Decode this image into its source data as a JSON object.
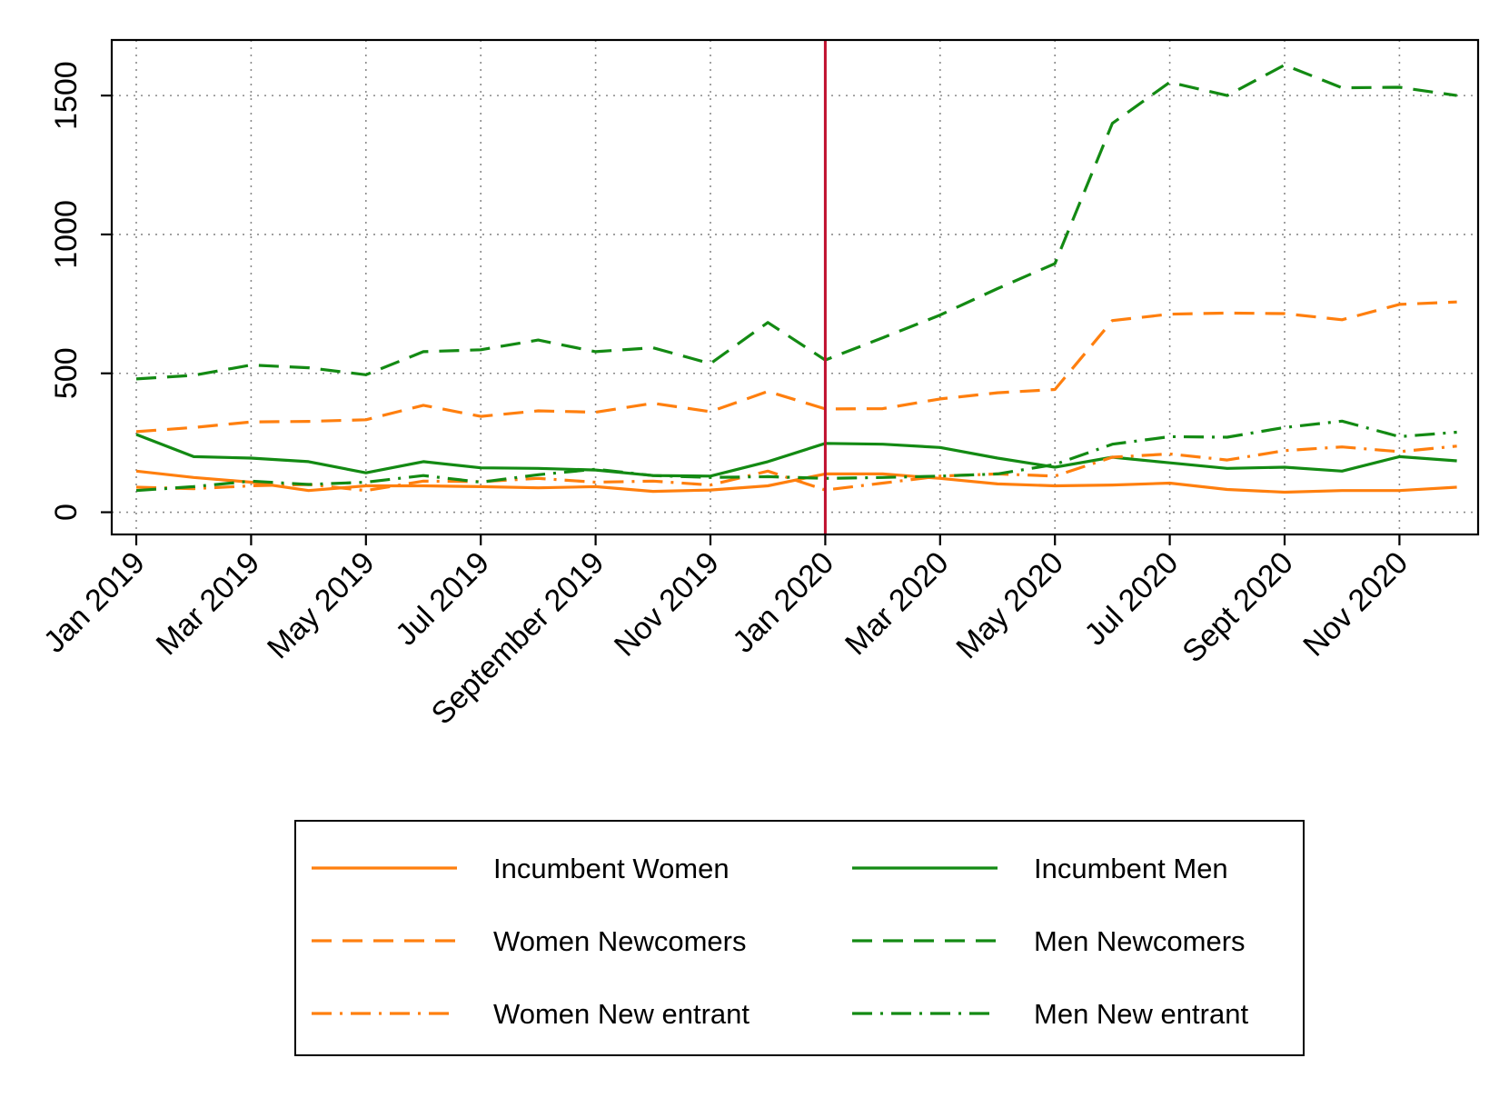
{
  "chart_data": {
    "type": "line",
    "title": "",
    "xlabel": "",
    "ylabel": "",
    "ylim": [
      -80,
      1700
    ],
    "yticks": [
      0,
      500,
      1000,
      1500
    ],
    "x_tick_labels": [
      "Jan 2019",
      "Mar 2019",
      "May 2019",
      "Jul 2019",
      "September 2019",
      "Nov 2019",
      "Jan 2020",
      "Mar 2020",
      "May 2020",
      "Jul 2020",
      "Sept 2020",
      "Nov 2020"
    ],
    "grid": true,
    "grid_style": "dotted",
    "legend_placement": "bottom",
    "reference_line": {
      "x_index": 12,
      "color": "#c0102e"
    },
    "series": [
      {
        "name": "Incumbent Women",
        "color": "#ff7f0e",
        "dash": "solid",
        "values": [
          148,
          125,
          108,
          78,
          95,
          95,
          92,
          88,
          92,
          75,
          80,
          95,
          138,
          138,
          122,
          102,
          95,
          98,
          105,
          82,
          72,
          78,
          78,
          90
        ]
      },
      {
        "name": "Incumbent Men",
        "color": "#138a13",
        "dash": "solid",
        "values": [
          280,
          200,
          195,
          182,
          142,
          182,
          160,
          158,
          152,
          132,
          130,
          182,
          248,
          245,
          233,
          195,
          162,
          198,
          178,
          158,
          162,
          148,
          200,
          185
        ]
      },
      {
        "name": "Women Newcomers",
        "color": "#ff7f0e",
        "dash": "dashed",
        "values": [
          290,
          305,
          325,
          327,
          333,
          385,
          345,
          365,
          360,
          392,
          362,
          435,
          372,
          373,
          408,
          430,
          442,
          690,
          713,
          717,
          715,
          693,
          748,
          757
        ]
      },
      {
        "name": "Men Newcomers",
        "color": "#138a13",
        "dash": "dashed",
        "values": [
          480,
          493,
          530,
          520,
          495,
          578,
          585,
          620,
          578,
          592,
          535,
          683,
          548,
          628,
          710,
          805,
          895,
          1400,
          1548,
          1500,
          1610,
          1528,
          1530,
          1500
        ]
      },
      {
        "name": "Women New entrant",
        "color": "#ff7f0e",
        "dash": "dashdot",
        "values": [
          90,
          85,
          95,
          100,
          78,
          112,
          110,
          122,
          108,
          112,
          98,
          148,
          80,
          105,
          130,
          138,
          130,
          198,
          210,
          188,
          222,
          235,
          218,
          238
        ]
      },
      {
        "name": "Men New entrant",
        "color": "#138a13",
        "dash": "dashdot",
        "values": [
          78,
          92,
          112,
          100,
          108,
          132,
          108,
          135,
          155,
          132,
          125,
          128,
          122,
          125,
          130,
          138,
          172,
          245,
          272,
          270,
          305,
          328,
          272,
          288
        ]
      }
    ]
  }
}
